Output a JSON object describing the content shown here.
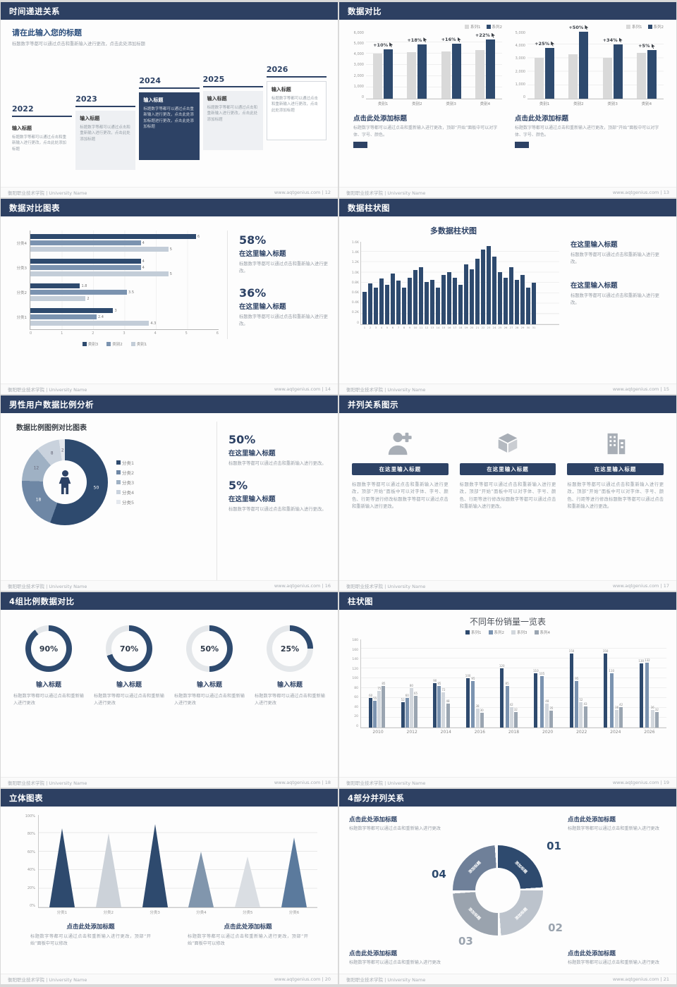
{
  "colors": {
    "header": "#2d4062",
    "navy": "#2e4a6e",
    "gray_bar": "#d9d9d9",
    "series19": [
      "#2e4a6e",
      "#7b93b0",
      "#d2d7dd",
      "#9aa5b1"
    ],
    "cones20": [
      "#2e4a6e",
      "#ccd2d9",
      "#2e4a6e",
      "#8196ad",
      "#dadee3",
      "#5b7a9d"
    ],
    "ring21": [
      "#2e4a6e",
      "#bcc3cc",
      "#9aa3ae",
      "#6f8099"
    ]
  },
  "footer": {
    "org": "衡阳职业技术学院 | University Name"
  },
  "slides": {
    "s12": {
      "header": "时间递进关系",
      "page_label": "www.aqtgenius.com | 12",
      "title": "请在此输入您的标题",
      "subtitle": "标题数字等都可以通过点击和重新输入进行更改，点击此处添加标题",
      "items": [
        {
          "year": "2022",
          "title": "输入标题",
          "text": "标题数字等都可以通过点击和重新输入进行更改，点击此处添加标题",
          "style": "plain"
        },
        {
          "year": "2023",
          "title": "输入标题",
          "text": "标题数字等都可以通过点击和重新输入进行更改，点击此处添加标题",
          "style": "gray"
        },
        {
          "year": "2024",
          "title": "输入标题",
          "text": "标题数字等都可以通过点击重新输入进行更改，点击此处添加标题进行更改，点击此处添加标题",
          "style": "navy"
        },
        {
          "year": "2025",
          "title": "输入标题",
          "text": "标题数字等都可以通过点击和重新输入进行更改，点击此处添加标题",
          "style": "gray"
        },
        {
          "year": "2026",
          "title": "输入标题",
          "text": "标题数字等都可以通过点击和重新输入进行更改，点击此处添加标题",
          "style": "outline"
        }
      ]
    },
    "s13": {
      "header": "数据对比",
      "page_label": "www.aqtgenius.com | 13",
      "panels": [
        {
          "title": "点击此处添加标题",
          "text": "标题数字等都可以通过点击和重新输入进行更改，顶部“开始”面板中可以对字体、字号、颜色。"
        },
        {
          "title": "点击此处添加标题",
          "text": "标题数字等都可以通过点击和重新输入进行更改，顶部“开始”面板中可以对字体、字号、颜色。"
        }
      ]
    },
    "s14": {
      "header": "数据对比图表",
      "page_label": "www.aqtgenius.com | 14",
      "stats": [
        {
          "value": "58%",
          "title": "在这里输入标题",
          "text": "标题数字等都可以通过点击和重新输入进行更改。"
        },
        {
          "value": "36%",
          "title": "在这里输入标题",
          "text": "标题数字等都可以通过点击和重新输入进行更改。"
        }
      ]
    },
    "s15": {
      "header": "数据柱状图",
      "page_label": "www.aqtgenius.com | 15",
      "blocks": [
        {
          "title": "在这里输入标题",
          "text": "标题数字等都可以通过点击和重新输入进行更改。"
        },
        {
          "title": "在这里输入标题",
          "text": "标题数字等都可以通过点击和重新输入进行更改。"
        }
      ]
    },
    "s16": {
      "header": "男性用户数据比例分析",
      "page_label": "www.aqtgenius.com | 16",
      "chart_title": "数据比例图例对比图表",
      "stats": [
        {
          "value": "50%",
          "title": "在这里输入标题",
          "text": "标题数字等都可以通过点击和重新输入进行更改。"
        },
        {
          "value": "5%",
          "title": "在这里输入标题",
          "text": "标题数字等都可以通过点击和重新输入进行更改。"
        }
      ]
    },
    "s17": {
      "header": "并列关系图示",
      "page_label": "www.aqtgenius.com | 17",
      "columns": [
        {
          "icon": "nurse-icon",
          "title": "在这里输入标题",
          "text": "标题数字等都可以通过点击和重新输入进行更改，顶部“开始”面板中可以对字体、字号、颜色、行距等进行修改标题数字等都可以通过点击和重新输入进行更改。"
        },
        {
          "icon": "box-icon",
          "title": "在这里输入标题",
          "text": "标题数字等都可以通过点击和重新输入进行更改，顶部“开始”面板中可以对字体、字号、颜色、行距等进行修改标题数字等都可以通过点击和重新输入进行更改。"
        },
        {
          "icon": "building-icon",
          "title": "在这里输入标题",
          "text": "标题数字等都可以通过点击和重新输入进行更改，顶部“开始”面板中可以对字体、字号、颜色、行距等进行修改标题数字等都可以通过点击和重新输入进行更改。"
        }
      ]
    },
    "s18": {
      "header": "4组比例数据对比",
      "page_label": "www.aqtgenius.com | 18",
      "rings": [
        {
          "label": "90%",
          "title": "输入标题",
          "text": "标题数字等都可以通过点击和重新输入进行更改"
        },
        {
          "label": "70%",
          "title": "输入标题",
          "text": "标题数字等都可以通过点击和重新输入进行更改"
        },
        {
          "label": "50%",
          "title": "输入标题",
          "text": "标题数字等都可以通过点击和重新输入进行更改"
        },
        {
          "label": "25%",
          "title": "输入标题",
          "text": "标题数字等都可以通过点击和重新输入进行更改"
        }
      ]
    },
    "s19": {
      "header": "柱状图",
      "page_label": "www.aqtgenius.com | 19"
    },
    "s20": {
      "header": "立体图表",
      "page_label": "www.aqtgenius.com | 20",
      "blocks": [
        {
          "title": "点击此处添加标题",
          "text": "标题数字等都可以通过点击和重新输入进行更改，顶部“开始”面板中可以修改"
        },
        {
          "title": "点击此处添加标题",
          "text": "标题数字等都可以通过点击和重新输入进行更改，顶部“开始”面板中可以修改"
        }
      ]
    },
    "s21": {
      "header": "4部分并列关系",
      "page_label": "www.aqtgenius.com | 21",
      "segment_label": "添加标题",
      "numbers": [
        "01",
        "02",
        "03",
        "04"
      ],
      "blocks": [
        {
          "title": "点击此处添加标题",
          "text": "标题数字等都可以通过点击和重新输入进行更改"
        },
        {
          "title": "点击此处添加标题",
          "text": "标题数字等都可以通过点击和重新输入进行更改"
        },
        {
          "title": "点击此处添加标题",
          "text": "标题数字等都可以通过点击和重新输入进行更改"
        },
        {
          "title": "点击此处添加标题",
          "text": "标题数字等都可以通过点击和重新输入进行更改"
        }
      ]
    }
  },
  "chart_data": [
    {
      "id": "s13_left",
      "type": "bar",
      "categories": [
        "类别1",
        "类别2",
        "类别3",
        "类别4"
      ],
      "series": [
        {
          "name": "系列1",
          "values": [
            4000,
            4100,
            4200,
            4300
          ]
        },
        {
          "name": "系列2",
          "values": [
            4400,
            4840,
            4870,
            5250
          ]
        }
      ],
      "growth_labels": [
        "+10%",
        "+18%",
        "+16%",
        "+22%"
      ],
      "ylim": [
        0,
        6000
      ],
      "yticks": [
        "6,000",
        "5,000",
        "4,000",
        "3,000",
        "2,000",
        "1,000",
        "0"
      ],
      "legend_position": "top-right"
    },
    {
      "id": "s13_right",
      "type": "bar",
      "categories": [
        "类别1",
        "类别2",
        "类别3",
        "类别4"
      ],
      "series": [
        {
          "name": "系列1",
          "values": [
            3000,
            3300,
            3000,
            3400
          ]
        },
        {
          "name": "系列2",
          "values": [
            3750,
            4950,
            4020,
            3570
          ]
        }
      ],
      "growth_labels": [
        "+25%",
        "+50%",
        "+34%",
        "+5%"
      ],
      "ylim": [
        0,
        5000
      ],
      "yticks": [
        "5,000",
        "4,000",
        "3,000",
        "2,000",
        "1,000",
        "0"
      ],
      "legend_position": "top-right"
    },
    {
      "id": "s14",
      "type": "bar-horizontal",
      "categories": [
        "分类4",
        "分类3",
        "分类2",
        "分类1"
      ],
      "series": [
        {
          "name": "类别3",
          "values": [
            6,
            4,
            1.8,
            3
          ]
        },
        {
          "name": "类别2",
          "values": [
            4,
            4,
            3.5,
            2.4
          ]
        },
        {
          "name": "类别1",
          "values": [
            5,
            5,
            2,
            4.3
          ]
        }
      ],
      "xlim": [
        0,
        6
      ],
      "xticks": [
        "0",
        "1",
        "2",
        "3",
        "4",
        "5",
        "6"
      ],
      "colors": [
        "#2e4a6e",
        "#7b93b0",
        "#c3cdd8"
      ],
      "legend_position": "bottom"
    },
    {
      "id": "s15",
      "type": "bar",
      "title": "多数据柱状图",
      "x": [
        "1",
        "2",
        "3",
        "4",
        "5",
        "6",
        "7",
        "8",
        "9",
        "10",
        "11",
        "12",
        "13",
        "14",
        "15",
        "16",
        "17",
        "18",
        "19",
        "20",
        "21",
        "22",
        "23",
        "24",
        "25",
        "26",
        "27",
        "28",
        "29",
        "30",
        "31"
      ],
      "values": [
        620,
        780,
        700,
        880,
        760,
        980,
        840,
        700,
        900,
        1040,
        1100,
        820,
        860,
        700,
        950,
        1000,
        900,
        760,
        1150,
        1060,
        1260,
        1440,
        1500,
        1300,
        1010,
        900,
        1100,
        860,
        950,
        700,
        800
      ],
      "ylim": [
        0,
        1600
      ],
      "yticks": [
        "1.6K",
        "1.4K",
        "1.2K",
        "1.0K",
        "0.8K",
        "0.6K",
        "0.4K",
        "0.2K",
        "0"
      ]
    },
    {
      "id": "s16",
      "type": "pie",
      "labels": [
        "分类1",
        "分类2",
        "分类3",
        "分类4",
        "分类5"
      ],
      "values": [
        50,
        18,
        12,
        8,
        2
      ],
      "colors": [
        "#2e4a6e",
        "#6e87a5",
        "#9fb1c4",
        "#c9d2dd",
        "#e4e8ee"
      ]
    },
    {
      "id": "s18",
      "type": "donut-set",
      "values": [
        90,
        70,
        50,
        25
      ]
    },
    {
      "id": "s19",
      "type": "bar",
      "title": "不同年份销量一览表",
      "categories": [
        "2010",
        "2012",
        "2014",
        "2016",
        "2018",
        "2020",
        "2022",
        "2024",
        "2026"
      ],
      "series": [
        {
          "name": "系列1",
          "values": [
            60,
            52,
            90,
            100,
            120,
            110,
            150,
            150,
            130
          ]
        },
        {
          "name": "系列2",
          "values": [
            55,
            60,
            85,
            95,
            85,
            105,
            95,
            110,
            132
          ]
        },
        {
          "name": "系列3",
          "values": [
            75,
            80,
            72,
            38,
            42,
            48,
            52,
            36,
            36
          ]
        },
        {
          "name": "系列4",
          "values": [
            85,
            65,
            48,
            30,
            32,
            35,
            43,
            42,
            32
          ]
        }
      ],
      "ylim": [
        0,
        180
      ],
      "yticks": [
        "180",
        "160",
        "140",
        "120",
        "100",
        "80",
        "60",
        "40",
        "20",
        "0"
      ],
      "legend_position": "top"
    },
    {
      "id": "s20",
      "type": "cone",
      "categories": [
        "分类1",
        "分类2",
        "分类3",
        "分类4",
        "分类5",
        "分类6"
      ],
      "values": [
        85,
        80,
        90,
        60,
        55,
        75
      ],
      "yticks": [
        "100%",
        "80%",
        "60%",
        "40%",
        "20%",
        "0%"
      ]
    }
  ]
}
